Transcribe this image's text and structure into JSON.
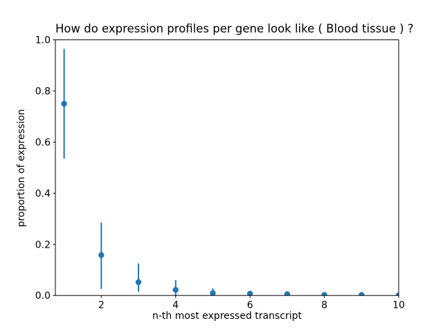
{
  "figure": {
    "background": "#ffffff"
  },
  "chart_data": {
    "type": "scatter",
    "subtype": "errorbar",
    "title": "How do expression profiles per gene look like ( Blood tissue ) ?",
    "xlabel": "n-th most expressed transcript",
    "ylabel": "proportion of expression",
    "x": [
      1,
      2,
      3,
      4,
      5,
      6,
      7,
      8,
      9,
      10
    ],
    "y": [
      0.75,
      0.158,
      0.052,
      0.022,
      0.0095,
      0.007,
      0.005,
      0.002,
      0.002,
      0.001
    ],
    "err_low": [
      0.535,
      0.026,
      0.015,
      0.0,
      0.0,
      0.007,
      0.005,
      0.002,
      0.002,
      0.001
    ],
    "err_high": [
      0.965,
      0.285,
      0.125,
      0.06,
      0.028,
      0.007,
      0.005,
      0.002,
      0.002,
      0.001
    ],
    "xlim": [
      0.765,
      10
    ],
    "ylim": [
      0.0,
      1.0
    ],
    "xticks": [
      2,
      4,
      6,
      8,
      10
    ],
    "xtick_labels": [
      "2",
      "4",
      "6",
      "8",
      "10"
    ],
    "yticks": [
      0.0,
      0.2,
      0.4,
      0.6,
      0.8,
      1.0
    ],
    "ytick_labels": [
      "0.0",
      "0.2",
      "0.4",
      "0.6",
      "0.8",
      "1.0"
    ],
    "grid": false,
    "legend": null,
    "marker_color": "#1f77b4",
    "errorbar_color": "#1f77b4",
    "axis_color": "#000000",
    "background": "#ffffff"
  }
}
